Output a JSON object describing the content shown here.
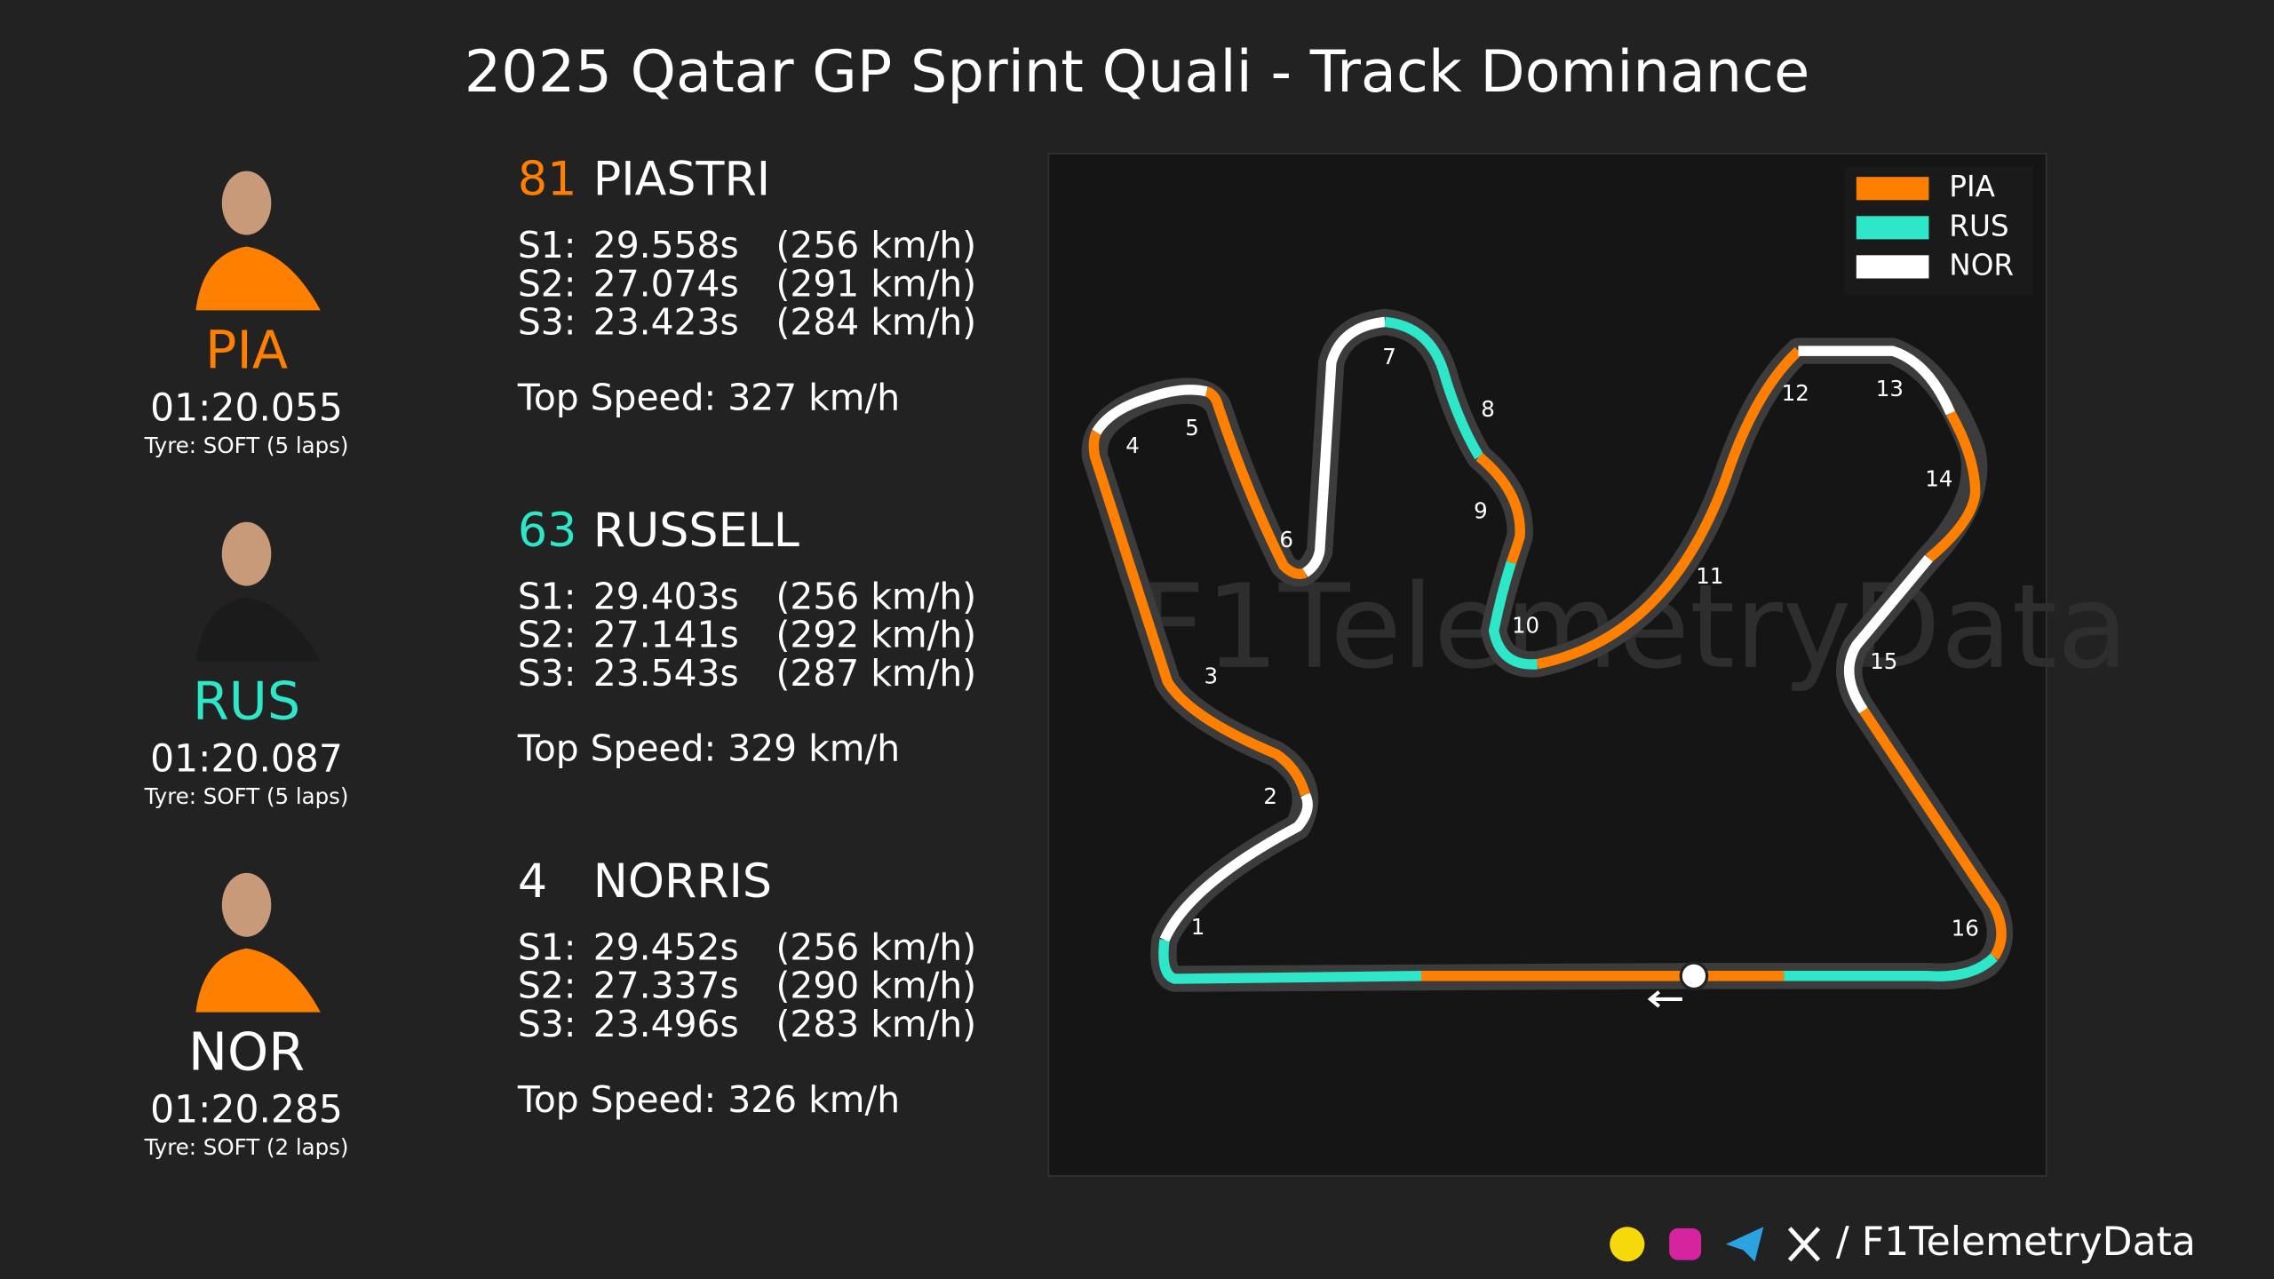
{
  "title": "2025 Qatar GP Sprint Quali - Track Dominance",
  "drivers": [
    {
      "number": 81,
      "name": "PIASTRI",
      "code": "PIA",
      "color": "#ff8000",
      "lap_time": "01:20.055",
      "tyre": "Tyre: SOFT (5 laps)",
      "sectors": [
        {
          "label": "S1:",
          "time": "29.558s",
          "speed": "(256 km/h)"
        },
        {
          "label": "S2:",
          "time": "27.074s",
          "speed": "(291 km/h)"
        },
        {
          "label": "S3:",
          "time": "23.423s",
          "speed": "(284 km/h)"
        }
      ],
      "top_speed": "Top Speed: 327 km/h"
    },
    {
      "number": 63,
      "name": "RUSSELL",
      "code": "RUS",
      "color": "#2ee6c8",
      "lap_time": "01:20.087",
      "tyre": "Tyre: SOFT (5 laps)",
      "sectors": [
        {
          "label": "S1:",
          "time": "29.403s",
          "speed": "(256 km/h)"
        },
        {
          "label": "S2:",
          "time": "27.141s",
          "speed": "(292 km/h)"
        },
        {
          "label": "S3:",
          "time": "23.543s",
          "speed": "(287 km/h)"
        }
      ],
      "top_speed": "Top Speed: 329 km/h"
    },
    {
      "number": 4,
      "name": "NORRIS",
      "code": "NOR",
      "color": "#ffffff",
      "lap_time": "01:20.285",
      "tyre": "Tyre: SOFT (2 laps)",
      "sectors": [
        {
          "label": "S1:",
          "time": "29.452s",
          "speed": "(256 km/h)"
        },
        {
          "label": "S2:",
          "time": "27.337s",
          "speed": "(290 km/h)"
        },
        {
          "label": "S3:",
          "time": "23.496s",
          "speed": "(283 km/h)"
        }
      ],
      "top_speed": "Top Speed: 326 km/h"
    }
  ],
  "legend": [
    {
      "name": "PIA",
      "color": "#ff8000"
    },
    {
      "name": "RUS",
      "color": "#2ee6c8"
    },
    {
      "name": "NOR",
      "color": "#ffffff"
    }
  ],
  "corners": [
    "1",
    "2",
    "3",
    "4",
    "5",
    "6",
    "7",
    "8",
    "9",
    "10",
    "11",
    "12",
    "13",
    "14",
    "15",
    "16"
  ],
  "watermark": "F1TelemetryData",
  "footer": "/ F1TelemetryData"
}
